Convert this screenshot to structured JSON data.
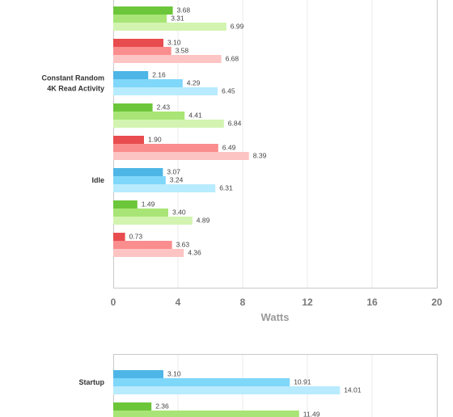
{
  "chart_data": [
    {
      "type": "bar",
      "orientation": "horizontal",
      "xlabel": "Watts",
      "xlim": [
        0,
        20
      ],
      "x_ticks": [
        "0",
        "4",
        "8",
        "12",
        "16",
        "20"
      ],
      "grid": true,
      "groups": [
        {
          "category": "",
          "bars": [
            {
              "value": 3.68,
              "label": "3.68",
              "color": "#6cc63a"
            },
            {
              "value": 3.31,
              "label": "3.31",
              "color": "#a8e576"
            },
            {
              "value": 6.99,
              "label": "6.99",
              "color": "#d2f4b0"
            }
          ]
        },
        {
          "category": "",
          "bars": [
            {
              "value": 3.1,
              "label": "3.10",
              "color": "#e84c4f"
            },
            {
              "value": 3.58,
              "label": "3.58",
              "color": "#fa8d8d"
            },
            {
              "value": 6.68,
              "label": "6.68",
              "color": "#fdc4c4"
            }
          ]
        },
        {
          "category": "Constant Random\n4K Read Activity",
          "bars": [
            {
              "value": 2.16,
              "label": "2.16",
              "color": "#4eb6e6"
            },
            {
              "value": 4.29,
              "label": "4.29",
              "color": "#7fd7fa"
            },
            {
              "value": 6.45,
              "label": "6.45",
              "color": "#b8ebfd"
            }
          ]
        },
        {
          "category": "",
          "bars": [
            {
              "value": 2.43,
              "label": "2.43",
              "color": "#6cc63a"
            },
            {
              "value": 4.41,
              "label": "4.41",
              "color": "#a8e576"
            },
            {
              "value": 6.84,
              "label": "6.84",
              "color": "#d2f4b0"
            }
          ]
        },
        {
          "category": "",
          "bars": [
            {
              "value": 1.9,
              "label": "1.90",
              "color": "#e84c4f"
            },
            {
              "value": 6.49,
              "label": "6.49",
              "color": "#fa8d8d"
            },
            {
              "value": 8.39,
              "label": "8.39",
              "color": "#fdc4c4"
            }
          ]
        },
        {
          "category": "Idle",
          "bars": [
            {
              "value": 3.07,
              "label": "3.07",
              "color": "#4eb6e6"
            },
            {
              "value": 3.24,
              "label": "3.24",
              "color": "#7fd7fa"
            },
            {
              "value": 6.31,
              "label": "6.31",
              "color": "#b8ebfd"
            }
          ]
        },
        {
          "category": "",
          "bars": [
            {
              "value": 1.49,
              "label": "1.49",
              "color": "#6cc63a"
            },
            {
              "value": 3.4,
              "label": "3.40",
              "color": "#a8e576"
            },
            {
              "value": 4.89,
              "label": "4.89",
              "color": "#d2f4b0"
            }
          ]
        },
        {
          "category": "",
          "bars": [
            {
              "value": 0.73,
              "label": "0.73",
              "color": "#e84c4f"
            },
            {
              "value": 3.63,
              "label": "3.63",
              "color": "#fa8d8d"
            },
            {
              "value": 4.36,
              "label": "4.36",
              "color": "#fdc4c4"
            }
          ]
        }
      ]
    },
    {
      "type": "bar",
      "orientation": "horizontal",
      "xlim": [
        0,
        20
      ],
      "grid": true,
      "groups": [
        {
          "category": "Startup",
          "bars": [
            {
              "value": 3.1,
              "label": "3.10",
              "color": "#4eb6e6"
            },
            {
              "value": 10.91,
              "label": "10.91",
              "color": "#7fd7fa"
            },
            {
              "value": 14.01,
              "label": "14.01",
              "color": "#b8ebfd"
            }
          ]
        },
        {
          "category": "",
          "bars": [
            {
              "value": 2.36,
              "label": "2.36",
              "color": "#6cc63a"
            },
            {
              "value": 11.49,
              "label": "11.49",
              "color": "#a8e576"
            }
          ]
        }
      ]
    }
  ]
}
